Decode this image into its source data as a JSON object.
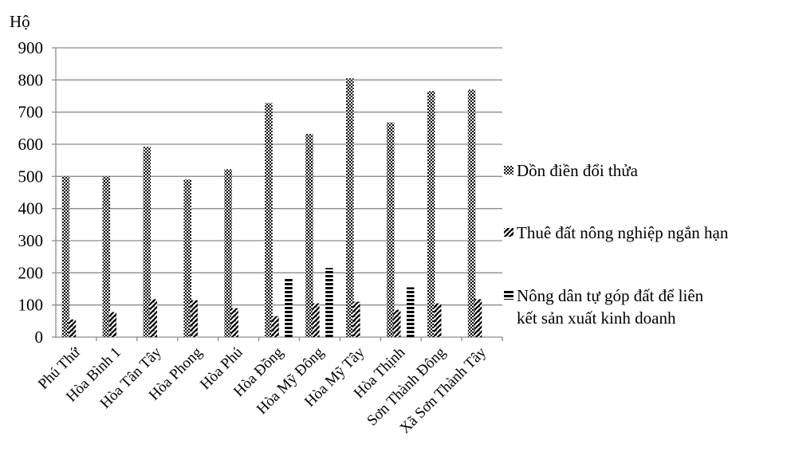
{
  "chart_data": {
    "type": "bar",
    "ylabel": "Hộ",
    "ylim": [
      0,
      900
    ],
    "yticks": [
      0,
      100,
      200,
      300,
      400,
      500,
      600,
      700,
      800,
      900
    ],
    "grid": true,
    "legend_position": "right",
    "categories": [
      "Phú Thứ",
      "Hòa Bình 1",
      "Hòa Tân Tây",
      "Hòa Phong",
      "Hòa Phú",
      "Hòa Đồng",
      "Hòa Mỹ Đông",
      "Hòa Mỹ Tây",
      "Hòa Thịnh",
      "Sơn Thành Đông",
      "Xã Sơn Thành Tây"
    ],
    "series": [
      {
        "name": "Dồn điền đổi thửa",
        "pattern": "checker",
        "values": [
          500,
          500,
          592,
          490,
          522,
          728,
          632,
          805,
          668,
          765,
          770
        ]
      },
      {
        "name": "Thuê đất nông nghiệp ngắn hạn",
        "pattern": "diagonal",
        "values": [
          55,
          78,
          118,
          115,
          90,
          65,
          105,
          110,
          85,
          105,
          118
        ]
      },
      {
        "name_lines": [
          "Nông dân tự góp đất  để liên",
          "kết sản xuất kinh doanh"
        ],
        "pattern": "horizontal",
        "values": [
          0,
          0,
          0,
          0,
          0,
          182,
          215,
          0,
          155,
          0,
          0
        ]
      }
    ]
  }
}
